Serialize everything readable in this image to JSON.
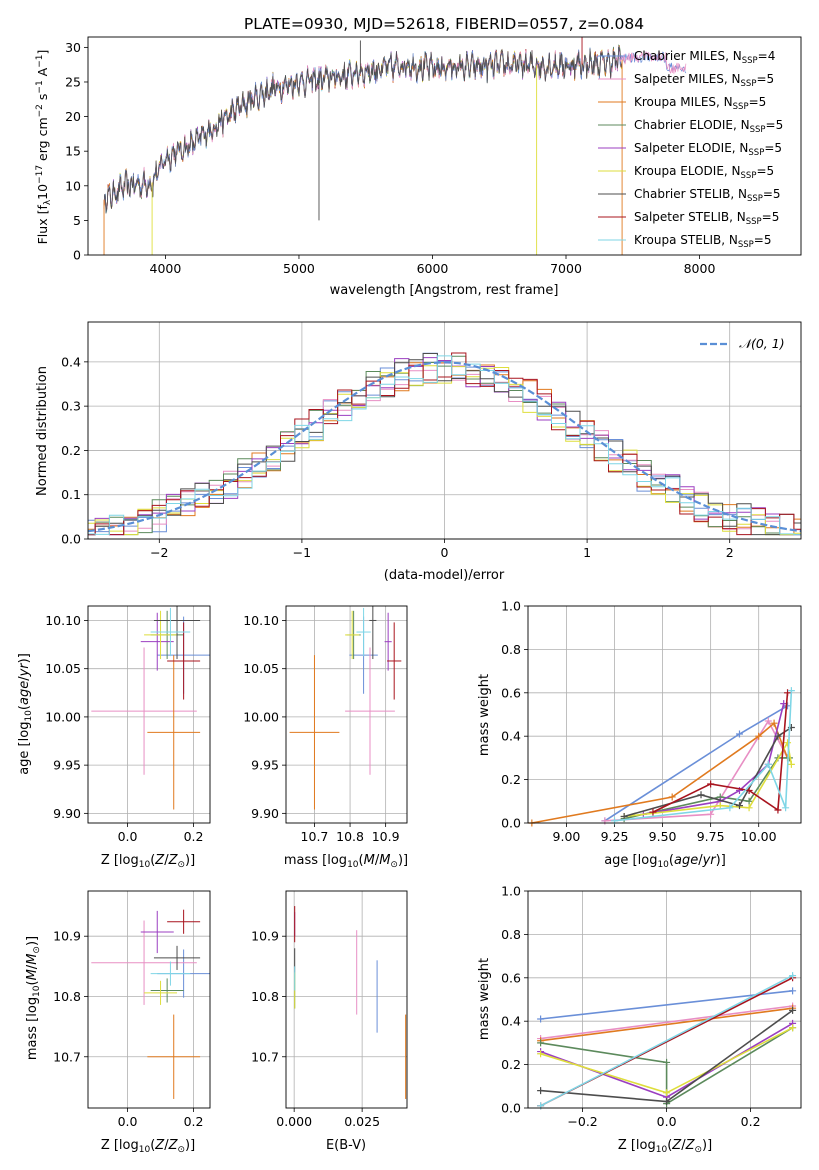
{
  "figure": {
    "title": "PLATE=0930, MJD=52618, FIBERID=0557, z=0.084"
  },
  "colors": {
    "Chabrier MILES": "#6a8fd8",
    "Salpeter MILES": "#e88fc4",
    "Kroupa MILES": "#e07a1f",
    "Chabrier ELODIE": "#5c8a5c",
    "Salpeter ELODIE": "#9b3fc1",
    "Kroupa ELODIE": "#dede3c",
    "Chabrier STELIB": "#4d4d4d",
    "Salpeter STELIB": "#a8141e",
    "Kroupa STELIB": "#7fd6e6",
    "normal": "#5a8fd6"
  },
  "chart_data": [
    {
      "id": "spectrum",
      "type": "line",
      "xlabel": "wavelength [Angstrom, rest frame]",
      "ylabel": "Flux [f_λ 10^-17 erg cm^-2 s^-1 A^-1]",
      "xlim": [
        3420,
        8760
      ],
      "ylim": [
        0,
        31.5
      ],
      "xticks": [
        4000,
        5000,
        6000,
        7000,
        8000
      ],
      "yticks": [
        0,
        5,
        10,
        15,
        20,
        25,
        30
      ],
      "continuum": {
        "x": [
          3540,
          3700,
          3900,
          4000,
          4200,
          4400,
          4600,
          4800,
          5000,
          5200,
          5500,
          5800,
          6000,
          6300,
          6600,
          6900,
          7100,
          7300,
          7500,
          7700,
          7900,
          8100
        ],
        "y": [
          8,
          10,
          10.5,
          14,
          16,
          19,
          22,
          24,
          25,
          25.5,
          26.5,
          27.5,
          27,
          27.2,
          27.5,
          27.3,
          27.5,
          27.8,
          28.5,
          28.6,
          28.4,
          28.2
        ]
      },
      "legend": [
        {
          "name": "Chabrier MILES, N_SSP=4",
          "label_main": "Chabrier MILES, N",
          "label_sub": "SSP",
          "label_tail": "=4"
        },
        {
          "name": "Salpeter MILES, N_SSP=5",
          "label_main": "Salpeter MILES, N",
          "label_sub": "SSP",
          "label_tail": "=5"
        },
        {
          "name": "Kroupa MILES, N_SSP=5",
          "label_main": "Kroupa MILES, N",
          "label_sub": "SSP",
          "label_tail": "=5"
        },
        {
          "name": "Chabrier ELODIE, N_SSP=5",
          "label_main": "Chabrier ELODIE, N",
          "label_sub": "SSP",
          "label_tail": "=5"
        },
        {
          "name": "Salpeter ELODIE, N_SSP=5",
          "label_main": "Salpeter ELODIE, N",
          "label_sub": "SSP",
          "label_tail": "=5"
        },
        {
          "name": "Kroupa ELODIE, N_SSP=5",
          "label_main": "Kroupa ELODIE, N",
          "label_sub": "SSP",
          "label_tail": "=5"
        },
        {
          "name": "Chabrier STELIB, N_SSP=5",
          "label_main": "Chabrier STELIB, N",
          "label_sub": "SSP",
          "label_tail": "=5"
        },
        {
          "name": "Salpeter STELIB, N_SSP=5",
          "label_main": "Salpeter STELIB, N",
          "label_sub": "SSP",
          "label_tail": "=5"
        },
        {
          "name": "Kroupa STELIB, N_SSP=5",
          "label_main": "Kroupa STELIB, N",
          "label_sub": "SSP",
          "label_tail": "=5"
        }
      ],
      "grid": false,
      "legend_position": "right"
    },
    {
      "id": "residuals",
      "type": "line",
      "xlabel": "(data-model)/error",
      "ylabel": "Normed distribution",
      "xlim": [
        -2.5,
        2.5
      ],
      "ylim": [
        0,
        0.49
      ],
      "xticks": [
        -2,
        -1,
        0,
        1,
        2
      ],
      "yticks": [
        0.0,
        0.1,
        0.2,
        0.3,
        0.4
      ],
      "legend": [
        "N(0,1)"
      ],
      "legend_position": "top-right",
      "grid": true
    },
    {
      "id": "age_vs_Z",
      "type": "scatter",
      "xlabel": "Z [log10(Z/Z_sun)]",
      "ylabel": "age [log10(age/yr)]",
      "xlim": [
        -0.12,
        0.25
      ],
      "ylim": [
        9.89,
        10.115
      ],
      "xticks": [
        0.0,
        0.2
      ],
      "yticks": [
        9.9,
        9.95,
        10.0,
        10.05,
        10.1
      ],
      "grid": true,
      "points": [
        {
          "model": "Chabrier MILES",
          "x": 0.17,
          "xerr": 0.08,
          "y": 10.064,
          "yerr": 0.04
        },
        {
          "model": "Salpeter MILES",
          "x": 0.05,
          "xerr": 0.16,
          "y": 10.006,
          "yerr": 0.066
        },
        {
          "model": "Kroupa MILES",
          "x": 0.14,
          "xerr": 0.08,
          "y": 9.984,
          "yerr": 0.08
        },
        {
          "model": "Chabrier ELODIE",
          "x": 0.12,
          "xerr": 0.05,
          "y": 10.085,
          "yerr": 0.025
        },
        {
          "model": "Salpeter ELODIE",
          "x": 0.09,
          "xerr": 0.05,
          "y": 10.078,
          "yerr": 0.03
        },
        {
          "model": "Kroupa ELODIE",
          "x": 0.1,
          "xerr": 0.05,
          "y": 10.085,
          "yerr": 0.025
        },
        {
          "model": "Chabrier STELIB",
          "x": 0.15,
          "xerr": 0.07,
          "y": 10.1,
          "yerr": 0.04
        },
        {
          "model": "Salpeter STELIB",
          "x": 0.17,
          "xerr": 0.05,
          "y": 10.058,
          "yerr": 0.04
        },
        {
          "model": "Kroupa STELIB",
          "x": 0.13,
          "xerr": 0.06,
          "y": 10.088,
          "yerr": 0.025
        }
      ]
    },
    {
      "id": "age_vs_mass",
      "type": "scatter",
      "xlabel": "mass [log10(M/M_sun)]",
      "xlim": [
        10.62,
        10.96
      ],
      "ylim": [
        9.89,
        10.115
      ],
      "xticks": [
        10.7,
        10.8,
        10.9
      ],
      "yticks": [
        9.9,
        9.95,
        10.0,
        10.05,
        10.1
      ],
      "grid": true,
      "points": [
        {
          "model": "Chabrier MILES",
          "x": 10.838,
          "xerr": 0.04,
          "y": 10.064,
          "yerr": 0.04
        },
        {
          "model": "Salpeter MILES",
          "x": 10.856,
          "xerr": 0.07,
          "y": 10.006,
          "yerr": 0.066
        },
        {
          "model": "Kroupa MILES",
          "x": 10.7,
          "xerr": 0.07,
          "y": 9.984,
          "yerr": 0.08
        },
        {
          "model": "Chabrier ELODIE",
          "x": 10.81,
          "xerr": 0.02,
          "y": 10.085,
          "yerr": 0.025
        },
        {
          "model": "Salpeter ELODIE",
          "x": 10.907,
          "xerr": 0.01,
          "y": 10.078,
          "yerr": 0.03
        },
        {
          "model": "Kroupa ELODIE",
          "x": 10.806,
          "xerr": 0.02,
          "y": 10.085,
          "yerr": 0.025
        },
        {
          "model": "Chabrier STELIB",
          "x": 10.864,
          "xerr": 0.01,
          "y": 10.1,
          "yerr": 0.04
        },
        {
          "model": "Salpeter STELIB",
          "x": 10.924,
          "xerr": 0.02,
          "y": 10.058,
          "yerr": 0.04
        },
        {
          "model": "Kroupa STELIB",
          "x": 10.838,
          "xerr": 0.02,
          "y": 10.088,
          "yerr": 0.025
        }
      ]
    },
    {
      "id": "weight_vs_age",
      "type": "line",
      "xlabel": "age [log10(age/yr)]",
      "ylabel": "mass weight",
      "xlim": [
        8.8,
        10.22
      ],
      "ylim": [
        0,
        1
      ],
      "xticks": [
        9.0,
        9.25,
        9.5,
        9.75,
        10.0
      ],
      "yticks": [
        0.0,
        0.2,
        0.4,
        0.6,
        0.8,
        1.0
      ],
      "grid": true,
      "series": [
        {
          "model": "Chabrier MILES",
          "x": [
            9.2,
            9.9,
            10.15
          ],
          "y": [
            0.01,
            0.41,
            0.54
          ]
        },
        {
          "model": "Salpeter MILES",
          "x": [
            9.2,
            9.75,
            10.05,
            10.15
          ],
          "y": [
            0.01,
            0.04,
            0.47,
            0.3
          ]
        },
        {
          "model": "Kroupa MILES",
          "x": [
            8.82,
            9.55,
            10.0,
            10.08,
            10.15
          ],
          "y": [
            0.0,
            0.12,
            0.4,
            0.46,
            0.3
          ]
        },
        {
          "model": "Chabrier ELODIE",
          "x": [
            9.3,
            9.8,
            9.95,
            10.1,
            10.16
          ],
          "y": [
            0.02,
            0.12,
            0.1,
            0.3,
            0.3
          ]
        },
        {
          "model": "Salpeter ELODIE",
          "x": [
            9.4,
            9.8,
            9.9,
            10.05,
            10.13
          ],
          "y": [
            0.04,
            0.1,
            0.15,
            0.27,
            0.55
          ]
        },
        {
          "model": "Kroupa ELODIE",
          "x": [
            9.3,
            9.8,
            9.95,
            10.15,
            10.17
          ],
          "y": [
            0.03,
            0.08,
            0.07,
            0.37,
            0.27
          ]
        },
        {
          "model": "Chabrier STELIB",
          "x": [
            9.3,
            9.7,
            9.9,
            10.1,
            10.17
          ],
          "y": [
            0.03,
            0.13,
            0.08,
            0.4,
            0.44
          ]
        },
        {
          "model": "Salpeter STELIB",
          "x": [
            9.45,
            9.75,
            9.95,
            10.1,
            10.15
          ],
          "y": [
            0.05,
            0.18,
            0.15,
            0.06,
            0.6
          ]
        },
        {
          "model": "Kroupa STELIB",
          "x": [
            9.25,
            9.85,
            10.05,
            10.14,
            10.17
          ],
          "y": [
            0.01,
            0.07,
            0.27,
            0.07,
            0.61
          ]
        }
      ]
    },
    {
      "id": "mass_vs_Z",
      "type": "scatter",
      "xlabel": "Z [log10(Z/Z_sun)]",
      "ylabel": "mass [log10(M/M_sun)]",
      "xlim": [
        -0.12,
        0.25
      ],
      "ylim": [
        10.615,
        10.975
      ],
      "xticks": [
        0.0,
        0.2
      ],
      "yticks": [
        10.7,
        10.8,
        10.9
      ],
      "grid": true,
      "points": [
        {
          "model": "Chabrier MILES",
          "x": 0.17,
          "xerr": 0.08,
          "y": 10.838,
          "yerr": 0.04
        },
        {
          "model": "Salpeter MILES",
          "x": 0.05,
          "xerr": 0.16,
          "y": 10.856,
          "yerr": 0.07
        },
        {
          "model": "Kroupa MILES",
          "x": 0.14,
          "xerr": 0.08,
          "y": 10.7,
          "yerr": 0.07
        },
        {
          "model": "Chabrier ELODIE",
          "x": 0.12,
          "xerr": 0.05,
          "y": 10.81,
          "yerr": 0.02
        },
        {
          "model": "Salpeter ELODIE",
          "x": 0.09,
          "xerr": 0.05,
          "y": 10.907,
          "yerr": 0.035
        },
        {
          "model": "Kroupa ELODIE",
          "x": 0.1,
          "xerr": 0.05,
          "y": 10.806,
          "yerr": 0.02
        },
        {
          "model": "Chabrier STELIB",
          "x": 0.15,
          "xerr": 0.07,
          "y": 10.864,
          "yerr": 0.02
        },
        {
          "model": "Salpeter STELIB",
          "x": 0.17,
          "xerr": 0.05,
          "y": 10.924,
          "yerr": 0.02
        },
        {
          "model": "Kroupa STELIB",
          "x": 0.13,
          "xerr": 0.06,
          "y": 10.838,
          "yerr": 0.02
        }
      ]
    },
    {
      "id": "mass_vs_EBV",
      "type": "scatter",
      "xlabel": "E(B-V)",
      "xlim": [
        -0.003,
        0.0415
      ],
      "ylim": [
        10.615,
        10.975
      ],
      "xticks": [
        0.0,
        0.025
      ],
      "yticks": [
        10.7,
        10.8,
        10.9
      ],
      "grid": true,
      "points": [
        {
          "model": "Chabrier MILES",
          "x": 0.0305,
          "y": 10.8,
          "yerr": 0.06
        },
        {
          "model": "Salpeter MILES",
          "x": 0.023,
          "y": 10.84,
          "yerr": 0.07
        },
        {
          "model": "Kroupa MILES",
          "x": 0.041,
          "y": 10.7,
          "yerr": 0.07
        },
        {
          "model": "Chabrier ELODIE",
          "x": 0.0002,
          "y": 10.81,
          "yerr": 0.03
        },
        {
          "model": "Salpeter ELODIE",
          "x": 0.0002,
          "y": 10.92,
          "yerr": 0.02
        },
        {
          "model": "Kroupa ELODIE",
          "x": 0.0002,
          "y": 10.81,
          "yerr": 0.03
        },
        {
          "model": "Chabrier STELIB",
          "x": 0.0002,
          "y": 10.86,
          "yerr": 0.02
        },
        {
          "model": "Salpeter STELIB",
          "x": 0.0002,
          "y": 10.92,
          "yerr": 0.03
        },
        {
          "model": "Kroupa STELIB",
          "x": 0.0002,
          "y": 10.83,
          "yerr": 0.02
        }
      ]
    },
    {
      "id": "weight_vs_Z",
      "type": "line",
      "xlabel": "Z [log10(Z/Z_sun)]",
      "ylabel": "mass weight",
      "xlim": [
        -0.33,
        0.32
      ],
      "ylim": [
        0,
        1
      ],
      "xticks": [
        -0.2,
        0.0,
        0.2
      ],
      "yticks": [
        0.0,
        0.2,
        0.4,
        0.6,
        0.8,
        1.0
      ],
      "grid": true,
      "series": [
        {
          "model": "Chabrier MILES",
          "x": [
            -0.3,
            0.3
          ],
          "y": [
            0.41,
            0.54
          ]
        },
        {
          "model": "Salpeter MILES",
          "x": [
            -0.3,
            0.3
          ],
          "y": [
            0.32,
            0.47
          ]
        },
        {
          "model": "Kroupa MILES",
          "x": [
            -0.3,
            0.3
          ],
          "y": [
            0.31,
            0.46
          ]
        },
        {
          "model": "Chabrier ELODIE",
          "x": [
            -0.3,
            0.0,
            0.0,
            0.3
          ],
          "y": [
            0.3,
            0.21,
            0.02,
            0.37
          ]
        },
        {
          "model": "Salpeter ELODIE",
          "x": [
            -0.3,
            0.0,
            0.3
          ],
          "y": [
            0.26,
            0.05,
            0.39
          ]
        },
        {
          "model": "Kroupa ELODIE",
          "x": [
            -0.3,
            0.0,
            0.3
          ],
          "y": [
            0.25,
            0.07,
            0.37
          ]
        },
        {
          "model": "Chabrier STELIB",
          "x": [
            -0.3,
            0.0,
            0.3
          ],
          "y": [
            0.08,
            0.03,
            0.45
          ]
        },
        {
          "model": "Salpeter STELIB",
          "x": [
            -0.3,
            0.3
          ],
          "y": [
            0.01,
            0.6
          ]
        },
        {
          "model": "Kroupa STELIB",
          "x": [
            -0.3,
            0.3
          ],
          "y": [
            0.01,
            0.61
          ]
        }
      ]
    }
  ]
}
